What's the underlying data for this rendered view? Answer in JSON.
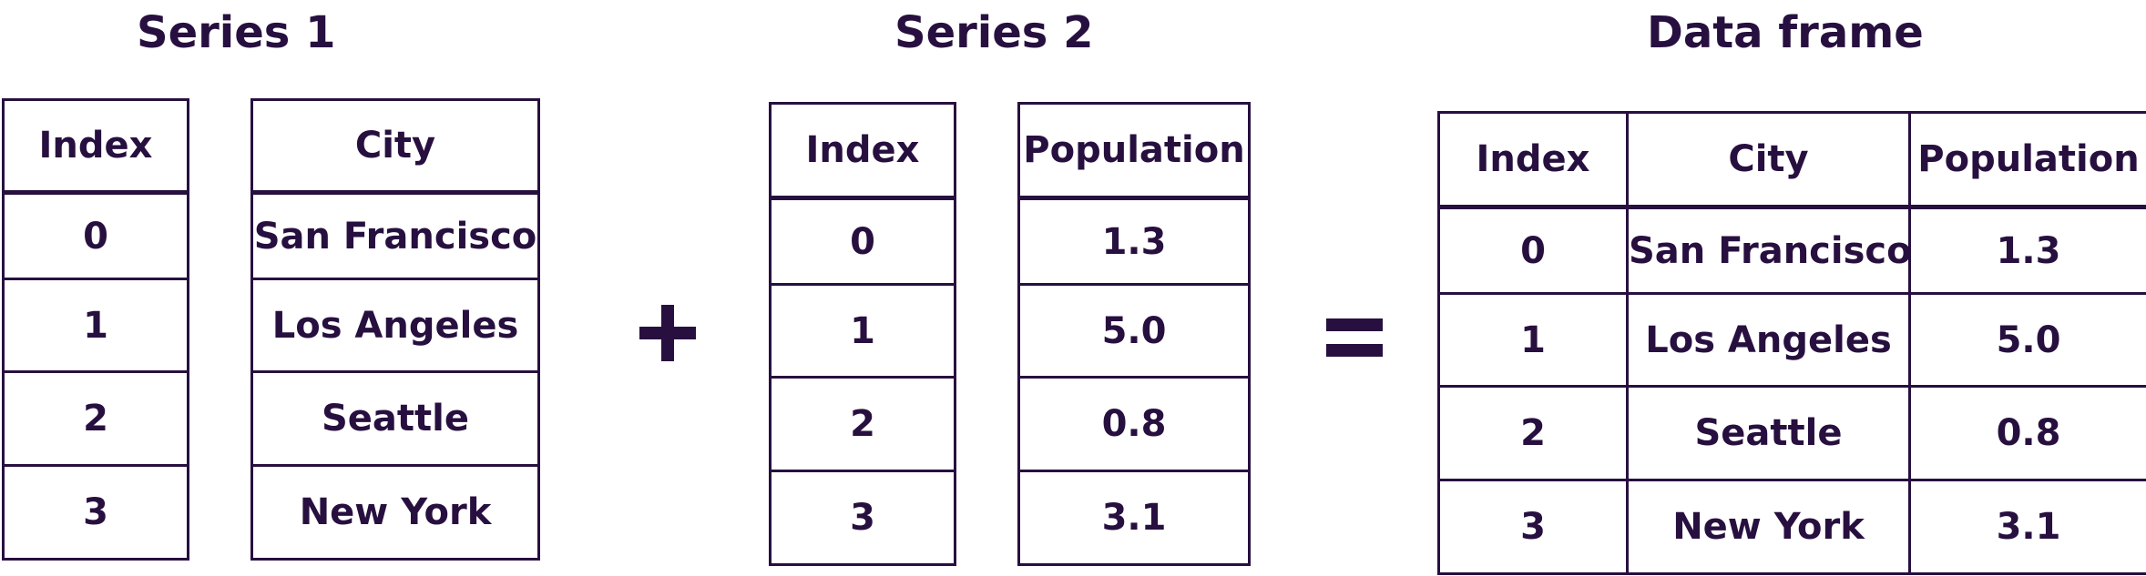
{
  "series1": {
    "title": "Series 1",
    "index_header": "Index",
    "value_header": "City",
    "rows": [
      {
        "index": "0",
        "value": "San Francisco"
      },
      {
        "index": "1",
        "value": "Los Angeles"
      },
      {
        "index": "2",
        "value": "Seattle"
      },
      {
        "index": "3",
        "value": "New York"
      }
    ]
  },
  "series2": {
    "title": "Series 2",
    "index_header": "Index",
    "value_header": "Population",
    "rows": [
      {
        "index": "0",
        "value": "1.3"
      },
      {
        "index": "1",
        "value": "5.0"
      },
      {
        "index": "2",
        "value": "0.8"
      },
      {
        "index": "3",
        "value": "3.1"
      }
    ]
  },
  "dataframe": {
    "title": "Data frame",
    "headers": [
      "Index",
      "City",
      "Population"
    ],
    "rows": [
      [
        "0",
        "San Francisco",
        "1.3"
      ],
      [
        "1",
        "Los Angeles",
        "5.0"
      ],
      [
        "2",
        "Seattle",
        "0.8"
      ],
      [
        "3",
        "New York",
        "3.1"
      ]
    ]
  },
  "operators": {
    "plus": "plus-sign",
    "equals": "equals-sign"
  },
  "colors": {
    "ink": "#27103f",
    "background": "#ffffff"
  }
}
